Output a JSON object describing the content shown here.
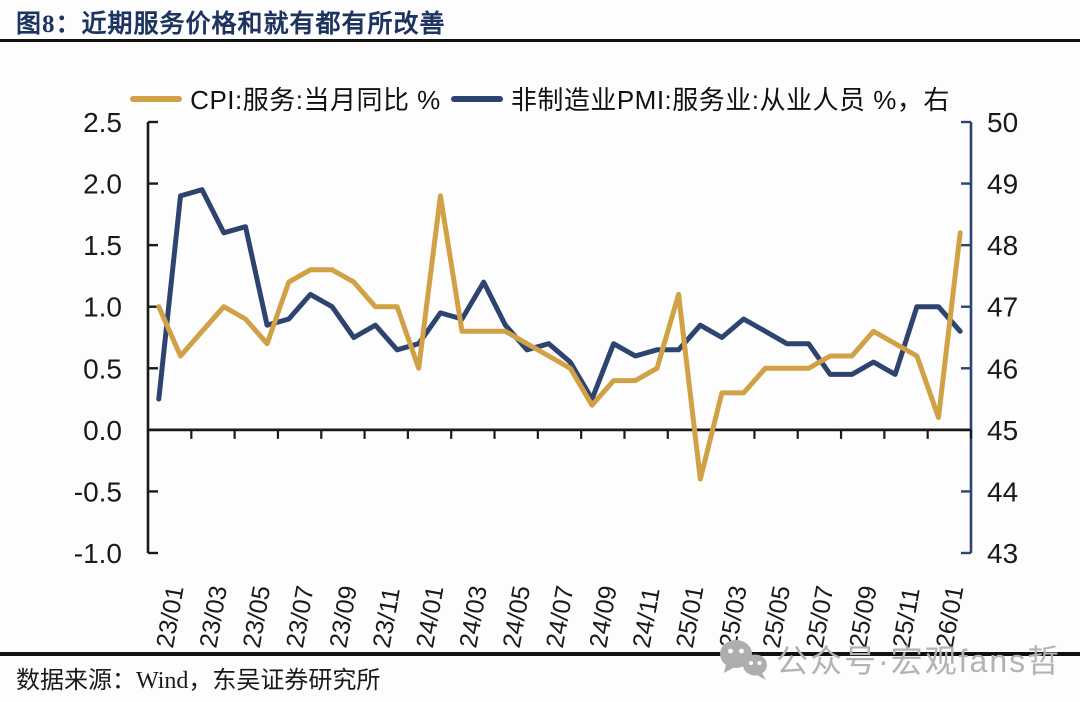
{
  "header": {
    "title": "图8：近期服务价格和就有都有所改善"
  },
  "chart_data": {
    "type": "line",
    "legend_position": "top",
    "grid": false,
    "x": [
      "23/01",
      "23/02",
      "23/03",
      "23/04",
      "23/05",
      "23/06",
      "23/07",
      "23/08",
      "23/09",
      "23/10",
      "23/11",
      "23/12",
      "24/01",
      "24/02",
      "24/03",
      "24/04",
      "24/05",
      "24/06",
      "24/07",
      "24/08",
      "24/09",
      "24/10",
      "24/11",
      "24/12",
      "25/01",
      "25/02",
      "25/03",
      "25/04",
      "25/05",
      "25/06",
      "25/07",
      "25/08",
      "25/09",
      "25/10",
      "25/11",
      "25/12",
      "26/01",
      "26/02"
    ],
    "x_tick_labels": [
      "23/01",
      "23/03",
      "23/05",
      "23/07",
      "23/09",
      "23/11",
      "24/01",
      "24/03",
      "24/05",
      "24/07",
      "24/09",
      "24/11",
      "25/01",
      "25/03",
      "25/05",
      "25/07",
      "25/09",
      "25/11",
      "26/01"
    ],
    "series": [
      {
        "name": "CPI:服务:当月同比 %",
        "axis": "left",
        "color": "#d0a145",
        "values": [
          1.0,
          0.6,
          0.8,
          1.0,
          0.9,
          0.7,
          1.2,
          1.3,
          1.3,
          1.2,
          1.0,
          1.0,
          0.5,
          1.9,
          0.8,
          0.8,
          0.8,
          0.7,
          0.6,
          0.5,
          0.2,
          0.4,
          0.4,
          0.5,
          1.1,
          -0.4,
          0.3,
          0.3,
          0.5,
          0.5,
          0.5,
          0.6,
          0.6,
          0.8,
          0.7,
          0.6,
          0.1,
          1.6
        ]
      },
      {
        "name": "非制造业PMI:服务业:从业人员 %，右",
        "axis": "right",
        "color": "#2e4470",
        "values": [
          45.5,
          48.8,
          48.9,
          48.2,
          48.3,
          46.7,
          46.8,
          47.2,
          47.0,
          46.5,
          46.7,
          46.3,
          46.4,
          46.9,
          46.8,
          47.4,
          46.7,
          46.3,
          46.4,
          46.1,
          45.5,
          46.4,
          46.2,
          46.3,
          46.3,
          46.7,
          46.5,
          46.8,
          46.6,
          46.4,
          46.4,
          45.9,
          45.9,
          46.1,
          45.9,
          47.0,
          47.0,
          46.6
        ]
      }
    ],
    "left_axis": {
      "min": -1.0,
      "max": 2.5,
      "step": 0.5,
      "ticks": [
        "2.5",
        "2.0",
        "1.5",
        "1.0",
        "0.5",
        "0.0",
        "-0.5",
        "-1.0"
      ]
    },
    "right_axis": {
      "min": 43,
      "max": 50,
      "step": 1,
      "ticks": [
        "50",
        "49",
        "48",
        "47",
        "46",
        "45",
        "44",
        "43"
      ]
    }
  },
  "footer": {
    "source": "数据来源：Wind，东吴证券研究所",
    "watermark": "公众号·宏观fans哲",
    "watermark_icon": "wechat-icon"
  }
}
